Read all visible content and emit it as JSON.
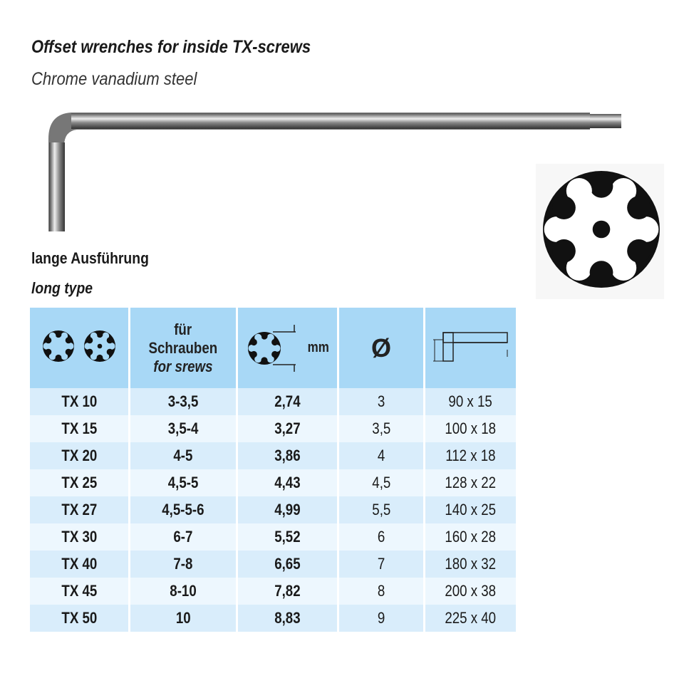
{
  "title": "Offset wrenches for inside TX-screws",
  "subtitle": "Chrome vanadium steel",
  "variant_de": "lange Ausführung",
  "variant_en": "long type",
  "table": {
    "headers": {
      "screw_de_1": "für",
      "screw_de_2": "Schrauben",
      "screw_en": "for srews",
      "size_unit": "mm",
      "diameter_symbol": "Ø"
    },
    "header_icons": [
      "torx-icon",
      "torx-tamper-icon",
      "torx-size-icon",
      "diameter-icon",
      "wrench-dimension-icon"
    ],
    "rows": [
      {
        "tx": "TX 10",
        "screws": "3-3,5",
        "mm": "2,74",
        "diameter": "3",
        "length": "90 x 15"
      },
      {
        "tx": "TX 15",
        "screws": "3,5-4",
        "mm": "3,27",
        "diameter": "3,5",
        "length": "100 x 18"
      },
      {
        "tx": "TX 20",
        "screws": "4-5",
        "mm": "3,86",
        "diameter": "4",
        "length": "112 x 18"
      },
      {
        "tx": "TX 25",
        "screws": "4,5-5",
        "mm": "4,43",
        "diameter": "4,5",
        "length": "128 x 22"
      },
      {
        "tx": "TX 27",
        "screws": "4,5-5-6",
        "mm": "4,99",
        "diameter": "5,5",
        "length": "140 x 25"
      },
      {
        "tx": "TX 30",
        "screws": "6-7",
        "mm": "5,52",
        "diameter": "6",
        "length": "160 x 28"
      },
      {
        "tx": "TX 40",
        "screws": "7-8",
        "mm": "6,65",
        "diameter": "7",
        "length": "180 x 32"
      },
      {
        "tx": "TX 45",
        "screws": "8-10",
        "mm": "7,82",
        "diameter": "8",
        "length": "200 x 38"
      },
      {
        "tx": "TX 50",
        "screws": "10",
        "mm": "8,83",
        "diameter": "9",
        "length": "225 x 40"
      }
    ]
  },
  "colors": {
    "header": "#a8d8f6",
    "row_odd": "#d9edfb",
    "row_even": "#edf7fe"
  }
}
